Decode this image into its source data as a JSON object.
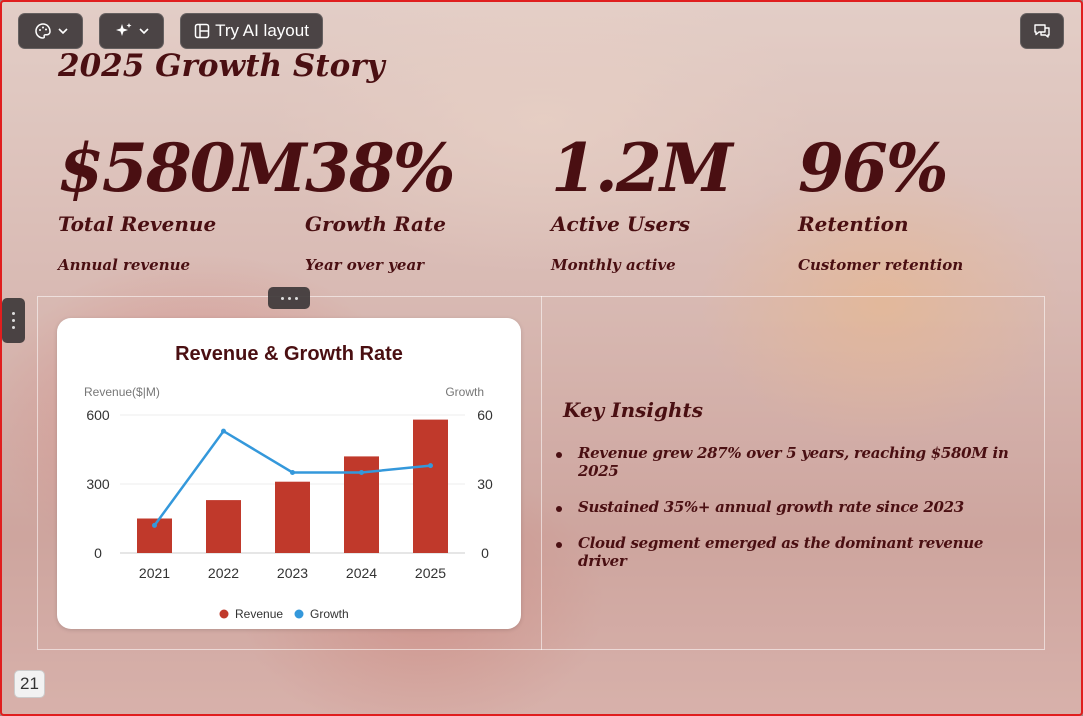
{
  "toolbar": {
    "theme_icon": "palette-icon",
    "ai_icon": "sparkle-icon",
    "layout_icon": "layout-icon",
    "layout_label": "Try AI layout",
    "comment_icon": "comment-icon"
  },
  "slide": {
    "title": "2025 Growth Story",
    "page_number": "21",
    "stats": [
      {
        "value": "$580M",
        "label": "Total Revenue",
        "sub": "Annual revenue"
      },
      {
        "value": "38%",
        "label": "Growth Rate",
        "sub": "Year over year"
      },
      {
        "value": "1.2M",
        "label": "Active Users",
        "sub": "Monthly active"
      },
      {
        "value": "96%",
        "label": "Retention",
        "sub": "Customer retention"
      }
    ],
    "insights": {
      "title": "Key Insights",
      "items": [
        "Revenue grew 287% over 5 years, reaching $580M in 2025",
        "Sustained 35%+ annual growth rate since 2023",
        "Cloud segment emerged as the dominant revenue driver"
      ]
    }
  },
  "chart_data": {
    "type": "bar",
    "title": "Revenue & Growth Rate",
    "categories": [
      "2021",
      "2022",
      "2023",
      "2024",
      "2025"
    ],
    "ylabel": "Revenue($|M)",
    "y2label": "Growth",
    "ylim": [
      0,
      600
    ],
    "y2lim": [
      0,
      60
    ],
    "yticks": [
      "0",
      "300",
      "600"
    ],
    "y2ticks": [
      "0",
      "30",
      "60"
    ],
    "series": [
      {
        "name": "Revenue",
        "type": "bar",
        "axis": "left",
        "color": "#c0392b",
        "values": [
          150,
          230,
          310,
          420,
          580
        ]
      },
      {
        "name": "Growth",
        "type": "line",
        "axis": "right",
        "color": "#3498db",
        "values": [
          12,
          53,
          35,
          35,
          38
        ]
      }
    ],
    "legend": "bottom",
    "grid": true
  }
}
